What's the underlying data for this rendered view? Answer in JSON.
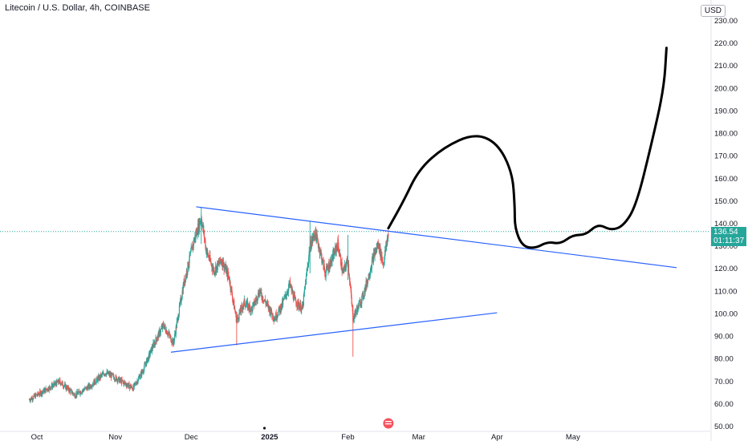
{
  "header": {
    "title": "Litecoin / U.S. Dollar, 4h, COINBASE",
    "currency": "USD"
  },
  "last_price": {
    "value": "136.54",
    "countdown": "01:11:37"
  },
  "colors": {
    "up": "#26a69a",
    "down": "#ef5350",
    "trendline": "#2962ff",
    "drawing": "#000000",
    "price_line": "#26a69a"
  },
  "chart_data": {
    "type": "candlestick",
    "ylim": [
      48,
      238
    ],
    "y_ticks": [
      "50.00",
      "60.00",
      "70.00",
      "80.00",
      "90.00",
      "100.00",
      "110.00",
      "120.00",
      "130.00",
      "140.00",
      "150.00",
      "160.00",
      "170.00",
      "180.00",
      "190.00",
      "200.00",
      "210.00",
      "220.00",
      "230.00"
    ],
    "x_ticks": [
      "Oct",
      "Nov",
      "Dec",
      "2025",
      "Feb",
      "Mar",
      "Apr",
      "May"
    ],
    "price_anchors": [
      [
        "Sep 28",
        62
      ],
      [
        "Oct 4",
        66
      ],
      [
        "Oct 10",
        70
      ],
      [
        "Oct 16",
        64
      ],
      [
        "Oct 22",
        68
      ],
      [
        "Oct 28",
        74
      ],
      [
        "Nov 2",
        71
      ],
      [
        "Nov 8",
        67
      ],
      [
        "Nov 12",
        75
      ],
      [
        "Nov 16",
        86
      ],
      [
        "Nov 20",
        95
      ],
      [
        "Nov 24",
        87
      ],
      [
        "Nov 28",
        113
      ],
      [
        "Dec 2",
        132
      ],
      [
        "Dec 5",
        143
      ],
      [
        "Dec 7",
        128
      ],
      [
        "Dec 10",
        119
      ],
      [
        "Dec 13",
        124
      ],
      [
        "Dec 16",
        116
      ],
      [
        "Dec 19",
        97
      ],
      [
        "Dec 22",
        105
      ],
      [
        "Dec 25",
        102
      ],
      [
        "Dec 28",
        110
      ],
      [
        "Dec 31",
        104
      ],
      [
        "Jan 3",
        98
      ],
      [
        "Jan 6",
        104
      ],
      [
        "Jan 9",
        113
      ],
      [
        "Jan 11",
        106
      ],
      [
        "Jan 14",
        102
      ],
      [
        "Jan 17",
        130
      ],
      [
        "Jan 19",
        136
      ],
      [
        "Jan 21",
        128
      ],
      [
        "Jan 23",
        118
      ],
      [
        "Jan 26",
        125
      ],
      [
        "Jan 28",
        131
      ],
      [
        "Jan 30",
        118
      ],
      [
        "Feb 1",
        124
      ],
      [
        "Feb 3",
        98
      ],
      [
        "Feb 5",
        103
      ],
      [
        "Feb 7",
        108
      ],
      [
        "Feb 9",
        116
      ],
      [
        "Feb 11",
        125
      ],
      [
        "Feb 13",
        131
      ],
      [
        "Feb 15",
        122
      ],
      [
        "Feb 17",
        136
      ]
    ],
    "upper_trendline": [
      [
        "Dec 3",
        147.5
      ],
      [
        "Jun 11",
        120.5
      ]
    ],
    "lower_trendline": [
      [
        "Nov 23",
        83
      ],
      [
        "Apr 1",
        100.5
      ]
    ],
    "drawn_projection": [
      [
        "Feb 17",
        138
      ],
      [
        "Feb 23",
        150
      ],
      [
        "Mar 1",
        164
      ],
      [
        "Mar 11",
        174
      ],
      [
        "Mar 23",
        180
      ],
      [
        "Apr 1",
        176
      ],
      [
        "Apr 7",
        163
      ],
      [
        "Apr 8",
        148
      ],
      [
        "Apr 8",
        138
      ],
      [
        "Apr 11",
        130
      ],
      [
        "Apr 16",
        129
      ],
      [
        "Apr 21",
        132
      ],
      [
        "Apr 26",
        131
      ],
      [
        "May 1",
        135
      ],
      [
        "May 6",
        135
      ],
      [
        "May 11",
        140
      ],
      [
        "May 16",
        137
      ],
      [
        "May 21",
        139
      ],
      [
        "May 26",
        148
      ],
      [
        "Jun 1",
        175
      ],
      [
        "Jun 6",
        200
      ],
      [
        "Jun 7",
        218
      ]
    ],
    "last_price": 136.54
  }
}
